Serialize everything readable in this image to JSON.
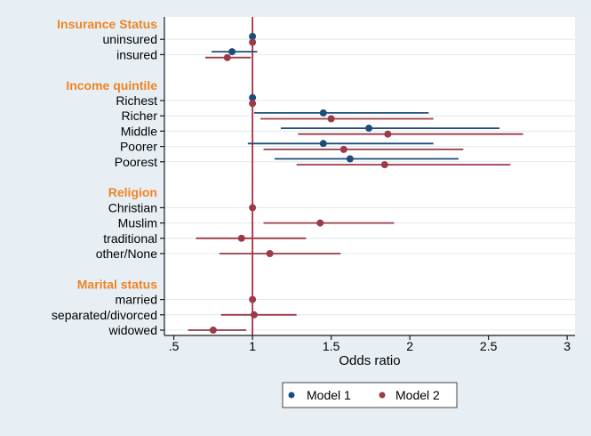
{
  "figure": {
    "kind": "forest-plot",
    "background_color": "#e8eff4",
    "plot_background_color": "#ffffff",
    "gridline_color": "#dde9f1",
    "axis_color": "#1a1a1a",
    "header_color": "#ef8423",
    "label_color": "#000000"
  },
  "chart_data": {
    "type": "scatter",
    "subtype": "forest-odds-ratio",
    "title": "",
    "xlabel": "Odds ratio",
    "xlim": [
      0.44,
      3.05
    ],
    "x_ticks": [
      0.5,
      1,
      1.5,
      2,
      2.5,
      3
    ],
    "x_tick_labels": [
      ".5",
      "1",
      "1.5",
      "2",
      "2.5",
      "3"
    ],
    "grid": true,
    "reference_line": 1,
    "reference_line_color": "#b12c44",
    "legend_position": "bottom-center",
    "series": [
      {
        "name": "Model 1",
        "key": "model1",
        "color": "#1f4d7a"
      },
      {
        "name": "Model 2",
        "key": "model2",
        "color": "#9c3a48"
      }
    ],
    "groups": [
      {
        "header": "Insurance Status",
        "rows": [
          {
            "label": "uninsured",
            "model1": {
              "or": 1.0,
              "reference": true
            },
            "model2": {
              "or": 1.0,
              "reference": true
            }
          },
          {
            "label": "insured",
            "model1": {
              "or": 0.87,
              "lo": 0.74,
              "hi": 1.03
            },
            "model2": {
              "or": 0.84,
              "lo": 0.7,
              "hi": 0.99
            }
          }
        ]
      },
      {
        "header": "Income quintile",
        "rows": [
          {
            "label": "Richest",
            "model1": {
              "or": 1.0,
              "reference": true
            },
            "model2": {
              "or": 1.0,
              "reference": true
            }
          },
          {
            "label": "Richer",
            "model1": {
              "or": 1.45,
              "lo": 1.01,
              "hi": 2.12
            },
            "model2": {
              "or": 1.5,
              "lo": 1.05,
              "hi": 2.15
            }
          },
          {
            "label": "Middle",
            "model1": {
              "or": 1.74,
              "lo": 1.18,
              "hi": 2.57
            },
            "model2": {
              "or": 1.86,
              "lo": 1.29,
              "hi": 2.72
            }
          },
          {
            "label": "Poorer",
            "model1": {
              "or": 1.45,
              "lo": 0.97,
              "hi": 2.15
            },
            "model2": {
              "or": 1.58,
              "lo": 1.07,
              "hi": 2.34
            }
          },
          {
            "label": "Poorest",
            "model1": {
              "or": 1.62,
              "lo": 1.14,
              "hi": 2.31
            },
            "model2": {
              "or": 1.84,
              "lo": 1.28,
              "hi": 2.64
            }
          }
        ]
      },
      {
        "header": "Religion",
        "rows": [
          {
            "label": "Christian",
            "model2": {
              "or": 1.0,
              "reference": true
            }
          },
          {
            "label": "Muslim",
            "model2": {
              "or": 1.43,
              "lo": 1.07,
              "hi": 1.9
            }
          },
          {
            "label": "traditional",
            "model2": {
              "or": 0.93,
              "lo": 0.64,
              "hi": 1.34
            }
          },
          {
            "label": "other/None",
            "model2": {
              "or": 1.11,
              "lo": 0.79,
              "hi": 1.56
            }
          }
        ]
      },
      {
        "header": "Marital status",
        "rows": [
          {
            "label": "married",
            "model2": {
              "or": 1.0,
              "reference": true
            }
          },
          {
            "label": "separated/divorced",
            "model2": {
              "or": 1.01,
              "lo": 0.8,
              "hi": 1.28
            }
          },
          {
            "label": "widowed",
            "model2": {
              "or": 0.75,
              "lo": 0.59,
              "hi": 0.96
            }
          }
        ]
      }
    ]
  }
}
